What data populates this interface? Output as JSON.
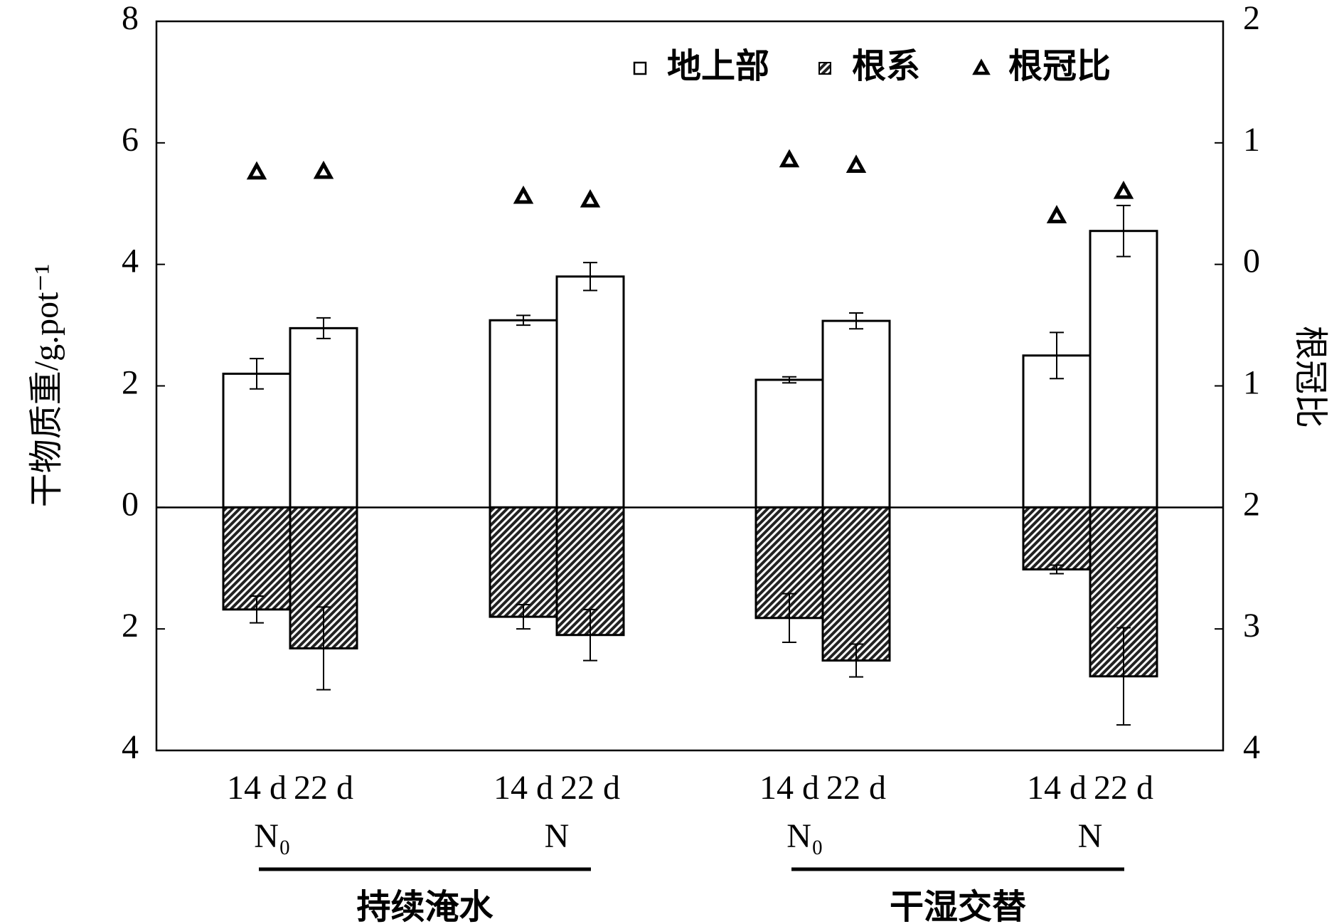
{
  "chart_data": {
    "type": "bar",
    "categories": [
      "14 d",
      "22 d",
      "14 d",
      "22 d",
      "14 d",
      "22 d",
      "14 d",
      "22 d"
    ],
    "groups": [
      "N₀",
      "N",
      "N₀",
      "N"
    ],
    "supergroups": [
      "持续淹水",
      "干湿交替"
    ],
    "ylabel": "干物质重/g.pot⁻¹",
    "y2label": "根冠比",
    "ylim": [
      -4,
      8
    ],
    "yticks": [
      {
        "value": -4,
        "label": "4"
      },
      {
        "value": -2,
        "label": "2"
      },
      0,
      2,
      4,
      6,
      8
    ],
    "y2lim": [
      -4,
      2
    ],
    "y2ticks": [
      {
        "value": -4,
        "label": "4"
      },
      {
        "value": -3,
        "label": "3"
      },
      {
        "value": -2,
        "label": "2"
      },
      {
        "value": -1,
        "label": "1"
      },
      0,
      1,
      2
    ],
    "legend": "upper right",
    "series": [
      {
        "name": "地上部",
        "color": "#ffffff",
        "values": [
          2.2,
          2.95,
          3.08,
          3.8,
          2.1,
          3.07,
          2.5,
          4.55
        ],
        "errors": [
          0.25,
          0.17,
          0.08,
          0.23,
          0.05,
          0.13,
          0.38,
          0.42
        ]
      },
      {
        "name": "根系",
        "color": "#333333",
        "values": [
          -1.68,
          -2.32,
          -1.8,
          -2.1,
          -1.82,
          -2.52,
          -1.02,
          -2.78
        ],
        "errors": [
          0.22,
          0.68,
          0.2,
          0.42,
          0.4,
          0.27,
          0.07,
          0.8
        ]
      },
      {
        "name": "根冠比",
        "color": "#000000",
        "axis": "y2",
        "values": [
          0.76,
          0.765,
          0.56,
          0.53,
          0.86,
          0.815,
          0.4,
          0.6
        ]
      }
    ]
  }
}
